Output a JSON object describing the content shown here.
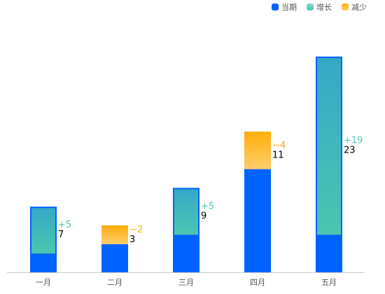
{
  "chart_data": {
    "type": "bar",
    "categories": [
      "一月",
      "二月",
      "三月",
      "四月",
      "五月"
    ],
    "series": [
      {
        "name": "当期",
        "color": "#0062ff",
        "values": [
          7,
          3,
          9,
          11,
          23
        ]
      },
      {
        "name": "增长",
        "color": "#4cc6b0",
        "values": [
          5,
          null,
          5,
          null,
          19
        ],
        "value_labels": [
          "+5",
          null,
          "+5",
          null,
          "+19"
        ]
      },
      {
        "name": "减少",
        "color": "#ffad0a",
        "values": [
          null,
          -2,
          null,
          -4,
          null
        ],
        "value_labels": [
          null,
          "−2",
          null,
          "−4",
          null
        ]
      }
    ],
    "ylim": [
      0,
      25
    ],
    "legend": "top-right"
  }
}
